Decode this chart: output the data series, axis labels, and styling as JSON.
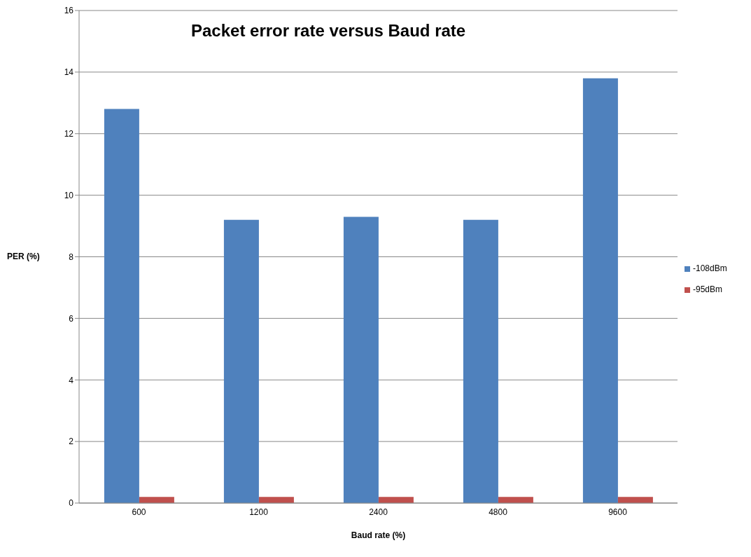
{
  "chart_data": {
    "type": "bar",
    "title": "Packet error rate versus Baud rate",
    "xlabel": "Baud rate (%)",
    "ylabel": "PER (%)",
    "categories": [
      "600",
      "1200",
      "2400",
      "4800",
      "9600"
    ],
    "series": [
      {
        "name": "-108dBm",
        "color": "#4f81bd",
        "values": [
          12.8,
          9.2,
          9.3,
          9.2,
          13.8
        ]
      },
      {
        "name": "-95dBm",
        "color": "#c0504d",
        "values": [
          0.2,
          0.2,
          0.2,
          0.2,
          0.2
        ]
      }
    ],
    "ylim": [
      0,
      16
    ],
    "yticks": [
      0,
      2,
      4,
      6,
      8,
      10,
      12,
      14,
      16
    ],
    "grid": "y",
    "legend": "right"
  }
}
